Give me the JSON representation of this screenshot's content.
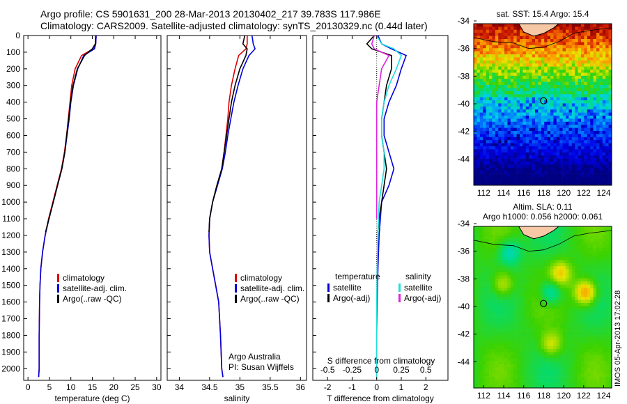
{
  "header": {
    "line1": "Argo profile: CS 5901631_200 28-Mar-2013 20130402_217 39.783S 117.986E",
    "line2": "Climatology: CARS2009. Satellite-adjusted climatology: synTS_20130329.nc (0.44d later)"
  },
  "colors": {
    "climatology": "#dd0000",
    "satellite": "#0000dd",
    "argo": "#000000",
    "sal_satellite": "#22dddd",
    "sal_argo": "#dd22dd"
  },
  "stamp": "IMOS 05-Apr-2013 17:02:28",
  "chart_data": [
    {
      "id": "temperature",
      "type": "line",
      "xlabel": "temperature (deg C)",
      "ylim": [
        0,
        2070
      ],
      "xlim": [
        -1,
        31
      ],
      "y_inverted": true,
      "xticks": [
        0,
        5,
        10,
        15,
        20,
        25,
        30
      ],
      "yticks": [
        0,
        100,
        200,
        300,
        400,
        500,
        600,
        700,
        800,
        900,
        1000,
        1100,
        1200,
        1300,
        1400,
        1500,
        1600,
        1700,
        1800,
        1900,
        2000
      ],
      "legend": [
        "climatology",
        "satellite-adj. clim.",
        "Argo(..raw -QC)"
      ],
      "series": [
        {
          "name": "climatology",
          "x": [
            15.9,
            15.8,
            15.2,
            12.5,
            11.0,
            10.2,
            9.8,
            9.4,
            9.0,
            8.5,
            7.8,
            6.8,
            5.8,
            4.8,
            4.0,
            3.4,
            3.0,
            2.8,
            2.7,
            2.6,
            2.6,
            2.5
          ],
          "y": [
            0,
            50,
            80,
            120,
            200,
            300,
            400,
            500,
            600,
            700,
            800,
            900,
            1000,
            1100,
            1200,
            1300,
            1400,
            1500,
            1600,
            1800,
            2000,
            2050
          ]
        },
        {
          "name": "satellite-adj. clim.",
          "x": [
            15.9,
            15.8,
            15.5,
            13.0,
            11.6,
            10.6,
            10.0,
            9.6,
            9.1,
            8.6,
            7.9,
            6.9,
            5.9,
            4.9,
            4.0,
            3.4,
            3.0,
            2.8,
            2.7,
            2.6,
            2.6,
            2.5
          ],
          "y": [
            0,
            50,
            80,
            120,
            200,
            300,
            400,
            500,
            600,
            700,
            800,
            900,
            1000,
            1100,
            1200,
            1300,
            1400,
            1500,
            1600,
            1800,
            2000,
            2050
          ]
        },
        {
          "name": "Argo(..raw -QC)",
          "x": [
            15.8,
            15.7,
            15.0,
            13.2,
            11.5,
            10.5,
            9.9,
            9.5,
            9.0,
            8.6,
            7.9,
            6.9,
            5.9,
            4.9,
            4.1
          ],
          "y": [
            0,
            50,
            80,
            120,
            200,
            300,
            400,
            500,
            600,
            700,
            800,
            900,
            1000,
            1100,
            1180
          ]
        }
      ]
    },
    {
      "id": "salinity",
      "type": "line",
      "xlabel": "salinity",
      "ylim": [
        0,
        2070
      ],
      "xlim": [
        33.8,
        36.1
      ],
      "y_inverted": true,
      "xticks": [
        34,
        34.5,
        35,
        35.5,
        36
      ],
      "legend": [
        "climatology",
        "satellite-adj. clim.",
        "Argo(..raw -QC)"
      ],
      "annotation": [
        "Argo Australia",
        "PI: Susan Wijffels"
      ],
      "series": [
        {
          "name": "climatology",
          "x": [
            35.12,
            35.12,
            35.1,
            34.98,
            34.92,
            34.86,
            34.82,
            34.8,
            34.77,
            34.74,
            34.7,
            34.62,
            34.55,
            34.5,
            34.49,
            34.5,
            34.55,
            34.6,
            34.65,
            34.68,
            34.7,
            34.72
          ],
          "y": [
            0,
            50,
            80,
            120,
            200,
            300,
            400,
            500,
            600,
            700,
            800,
            900,
            1000,
            1100,
            1200,
            1300,
            1400,
            1500,
            1600,
            1800,
            2000,
            2050
          ]
        },
        {
          "name": "satellite-adj. clim.",
          "x": [
            35.2,
            35.22,
            35.25,
            35.15,
            35.05,
            34.97,
            34.9,
            34.85,
            34.8,
            34.76,
            34.71,
            34.63,
            34.55,
            34.5,
            34.49,
            34.5,
            34.55,
            34.6,
            34.65,
            34.68,
            34.7,
            34.72
          ],
          "y": [
            0,
            50,
            80,
            120,
            200,
            300,
            400,
            500,
            600,
            700,
            800,
            900,
            1000,
            1100,
            1200,
            1300,
            1400,
            1500,
            1600,
            1800,
            2000,
            2050
          ]
        },
        {
          "name": "Argo(..raw -QC)",
          "x": [
            35.08,
            35.05,
            35.12,
            35.1,
            35.0,
            34.92,
            34.86,
            34.82,
            34.78,
            34.74,
            34.7,
            34.62,
            34.55,
            34.5,
            34.49
          ],
          "y": [
            0,
            50,
            80,
            120,
            200,
            300,
            400,
            500,
            600,
            700,
            800,
            900,
            1000,
            1100,
            1180
          ]
        }
      ]
    },
    {
      "id": "difference",
      "type": "line",
      "xlabel": "T difference from climatology",
      "x2label": "S difference from climatology",
      "ylim": [
        0,
        2070
      ],
      "xlim": [
        -2.6,
        2.9
      ],
      "y_inverted": true,
      "xticks": [
        -2,
        -1,
        0,
        1,
        2
      ],
      "x2ticks": [
        -0.5,
        -0.25,
        0,
        0.25,
        0.5
      ],
      "legend_headers": [
        "temperature",
        "salinity"
      ],
      "legend": [
        "satellite",
        "Argo(-adj)",
        "satellite",
        "Argo(-adj)"
      ],
      "series": [
        {
          "name": "satellite",
          "x": [
            0.05,
            0.2,
            0.6,
            1.2,
            1.0,
            0.8,
            0.5,
            0.3,
            0.3,
            0.5,
            0.7,
            0.5,
            0.2,
            0.1,
            0.05,
            0.02,
            0.0,
            0.0
          ],
          "y": [
            0,
            50,
            80,
            120,
            200,
            300,
            400,
            500,
            600,
            700,
            800,
            900,
            1000,
            1200,
            1400,
            1600,
            1800,
            2050
          ]
        },
        {
          "name": "Argo(-adj)",
          "x": [
            -0.1,
            -0.4,
            -0.2,
            0.6,
            0.6,
            0.4,
            0.3,
            0.2,
            0.2,
            0.3,
            0.4,
            0.3,
            0.2,
            0.1,
            0.05
          ],
          "y": [
            0,
            50,
            80,
            120,
            200,
            300,
            400,
            500,
            600,
            700,
            800,
            900,
            1000,
            1100,
            1180
          ]
        },
        {
          "name": "satellite",
          "x": [
            0.0,
            0.2,
            0.7,
            1.0,
            0.8,
            0.5,
            0.3,
            0.2,
            0.2,
            0.3,
            0.3,
            0.2,
            0.1,
            0.05,
            0.02,
            0.0,
            0.0,
            0.0
          ],
          "y": [
            0,
            50,
            80,
            120,
            200,
            300,
            400,
            500,
            600,
            700,
            800,
            900,
            1000,
            1200,
            1400,
            1600,
            1800,
            2050
          ]
        },
        {
          "name": "Argo(-adj)",
          "x": [
            -0.1,
            -0.2,
            -0.1,
            0.5,
            0.2,
            0.1,
            0.0,
            0.0,
            0.0,
            0.0,
            0.0,
            0.0,
            0.0,
            0.0
          ],
          "y": [
            0,
            50,
            80,
            120,
            200,
            300,
            400,
            500,
            600,
            700,
            800,
            900,
            1000,
            1100
          ]
        }
      ]
    },
    {
      "id": "sst_map",
      "type": "heatmap",
      "title": "sat. SST: 15.4 Argo: 15.4",
      "xticks": [
        112,
        114,
        116,
        118,
        120,
        122,
        124
      ],
      "xlim": [
        111,
        124.8
      ],
      "yticks": [
        -34,
        -36,
        -38,
        -40,
        -42,
        -44
      ],
      "ylim": [
        -45.9,
        -34.2
      ],
      "marker": {
        "lon": 117.986,
        "lat": -39.783
      }
    },
    {
      "id": "sla_map",
      "type": "heatmap",
      "title": "Altim. SLA: 0.11",
      "subtitle": "Argo h1000: 0.056 h2000: 0.061",
      "xticks": [
        112,
        114,
        116,
        118,
        120,
        122,
        124
      ],
      "xlim": [
        111,
        124.8
      ],
      "yticks": [
        -34,
        -36,
        -38,
        -40,
        -42,
        -44
      ],
      "ylim": [
        -45.9,
        -34.2
      ],
      "marker": {
        "lon": 117.986,
        "lat": -39.783
      }
    }
  ]
}
